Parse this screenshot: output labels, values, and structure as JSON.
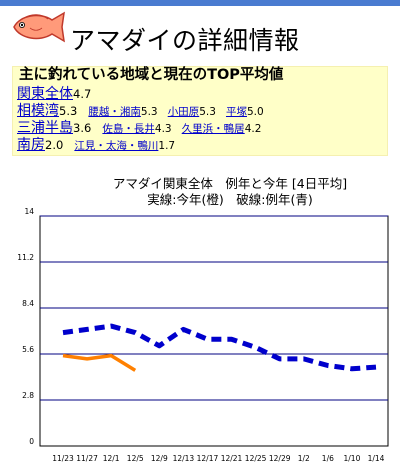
{
  "page": {
    "title": "アマダイの詳細情報",
    "panel_heading": "主に釣れている地域と現在のTOP平均値"
  },
  "regions": [
    {
      "name": "関東全体",
      "value": "4.7",
      "subs": []
    },
    {
      "name": "相模湾",
      "value": "5.3",
      "subs": [
        {
          "name": "腰越・湘南",
          "value": "5.3"
        },
        {
          "name": "小田原",
          "value": "5.3"
        },
        {
          "name": "平塚",
          "value": "5.0"
        }
      ]
    },
    {
      "name": "三浦半島",
      "value": "3.6",
      "subs": [
        {
          "name": "佐島・長井",
          "value": "4.3"
        },
        {
          "name": "久里浜・鴨居",
          "value": "4.2"
        }
      ]
    },
    {
      "name": "南房",
      "value": "2.0",
      "subs": [
        {
          "name": "江見・太海・鴨川",
          "value": "1.7"
        }
      ]
    }
  ],
  "colors": {
    "this_year": "#ff8000",
    "last_year": "#0000cc",
    "grid": "#000080",
    "axis_text": "#000000"
  },
  "chart_data": {
    "type": "line",
    "title": "アマダイ関東全体　例年と今年 [4日平均]",
    "subtitle": "実線:今年(橙)　破線:例年(青)",
    "categories": [
      "11/23",
      "11/27",
      "12/1",
      "12/5",
      "12/9",
      "12/13",
      "12/17",
      "12/21",
      "12/25",
      "12/29",
      "1/2",
      "1/6",
      "1/10",
      "1/14"
    ],
    "ylim": [
      0,
      14
    ],
    "yticks": [
      "0",
      "2.8",
      "5.6",
      "8.4",
      "11.2",
      "14"
    ],
    "series": [
      {
        "name": "例年",
        "style": "dashed",
        "values": [
          6.9,
          7.1,
          7.3,
          6.9,
          6.1,
          7.1,
          6.5,
          6.5,
          6.0,
          5.3,
          5.3,
          4.9,
          4.7,
          4.8
        ]
      },
      {
        "name": "今年",
        "style": "solid",
        "values": [
          5.5,
          5.3,
          5.5,
          4.6,
          null,
          null,
          null,
          null,
          null,
          null,
          null,
          null,
          null,
          null
        ]
      }
    ]
  }
}
